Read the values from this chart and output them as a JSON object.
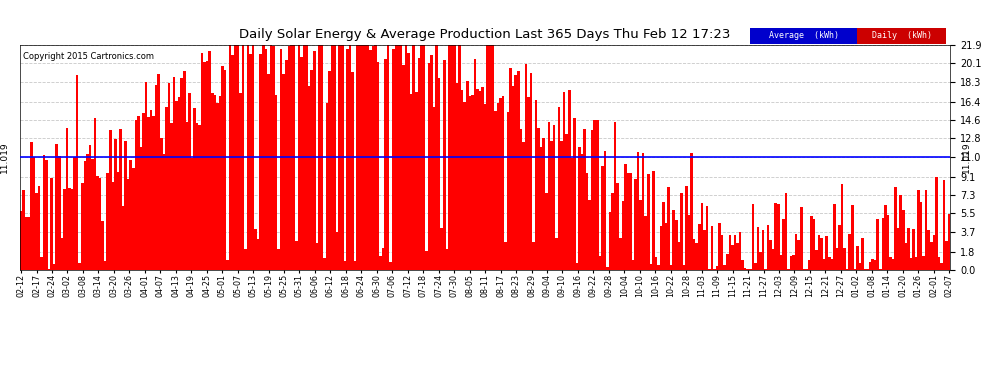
{
  "title": "Daily Solar Energy & Average Production Last 365 Days Thu Feb 12 17:23",
  "copyright": "Copyright 2015 Cartronics.com",
  "average_value": 11.019,
  "average_label": "11.019",
  "bar_color": "#FF0000",
  "average_line_color": "#0000FF",
  "background_color": "#FFFFFF",
  "plot_bg_color": "#FFFFFF",
  "grid_color": "#BBBBBB",
  "ylim": [
    0.0,
    21.9
  ],
  "yticks": [
    0.0,
    1.8,
    3.7,
    5.5,
    7.3,
    9.1,
    11.0,
    12.8,
    14.6,
    16.4,
    18.3,
    20.1,
    21.9
  ],
  "legend_avg_bg": "#0000CC",
  "legend_daily_bg": "#CC0000",
  "legend_avg_text": "Average  (kWh)",
  "legend_daily_text": "Daily  (kWh)",
  "x_tick_labels": [
    "02-12",
    "02-17",
    "02-24",
    "03-02",
    "03-08",
    "03-14",
    "03-20",
    "03-26",
    "04-01",
    "04-07",
    "04-13",
    "04-19",
    "04-25",
    "05-01",
    "05-07",
    "05-13",
    "05-19",
    "05-25",
    "05-31",
    "06-06",
    "06-12",
    "06-18",
    "06-24",
    "06-30",
    "07-06",
    "07-12",
    "07-18",
    "07-24",
    "07-30",
    "08-05",
    "08-11",
    "08-17",
    "08-23",
    "08-29",
    "09-04",
    "09-10",
    "09-16",
    "09-22",
    "09-28",
    "10-04",
    "10-10",
    "10-16",
    "10-22",
    "10-28",
    "11-03",
    "11-09",
    "11-15",
    "11-21",
    "11-27",
    "12-03",
    "12-09",
    "12-15",
    "12-21",
    "12-27",
    "01-02",
    "01-08",
    "01-14",
    "01-20",
    "01-26",
    "02-01",
    "02-07"
  ],
  "num_bars": 365
}
